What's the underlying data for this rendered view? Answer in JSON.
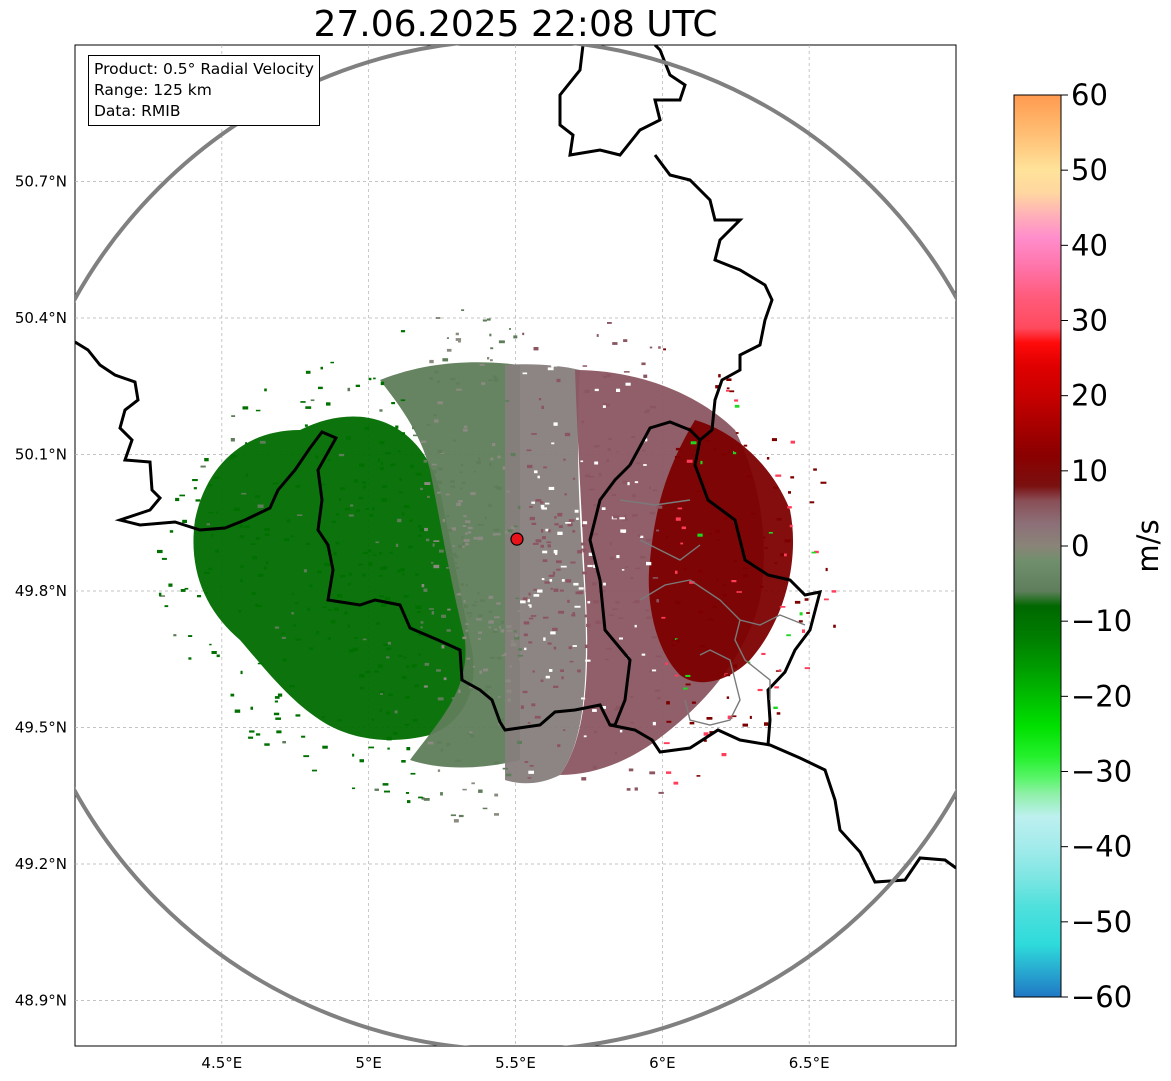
{
  "title": "27.06.2025 22:08 UTC",
  "info": {
    "product": "Product: 0.5° Radial Velocity",
    "range": "Range: 125 km",
    "data": "Data: RMIB"
  },
  "map": {
    "lon_range": [
      4.0,
      7.0
    ],
    "lat_range": [
      48.8,
      51.0
    ],
    "lon_ticks": [
      "4.5°E",
      "5°E",
      "5.5°E",
      "6°E",
      "6.5°E"
    ],
    "lon_tick_values": [
      4.5,
      5.0,
      5.5,
      6.0,
      6.5
    ],
    "lat_ticks": [
      "48.9°N",
      "49.2°N",
      "49.5°N",
      "49.8°N",
      "50.1°N",
      "50.4°N",
      "50.7°N"
    ],
    "lat_tick_values": [
      48.9,
      49.2,
      49.5,
      49.8,
      50.1,
      50.4,
      50.7
    ],
    "grid": true,
    "radar_site": {
      "lon": 5.505,
      "lat": 49.914,
      "color": "#e8121b"
    },
    "range_ring_color": "#808080",
    "border_color": "#000000"
  },
  "colorbar": {
    "unit": "m/s",
    "min": -60,
    "max": 60,
    "tick_labels": [
      "60",
      "50",
      "40",
      "30",
      "20",
      "10",
      "0",
      "−10",
      "−20",
      "−30",
      "−40",
      "−50",
      "−60"
    ],
    "tick_values": [
      60,
      50,
      40,
      30,
      20,
      10,
      0,
      -10,
      -20,
      -30,
      -40,
      -50,
      -60
    ],
    "color_stops": [
      {
        "v": -60,
        "c": "#1f77c4"
      },
      {
        "v": -57,
        "c": "#27a3cf"
      },
      {
        "v": -53,
        "c": "#2edbdb"
      },
      {
        "v": -48,
        "c": "#4fe0dc"
      },
      {
        "v": -44,
        "c": "#7ee6e3"
      },
      {
        "v": -40,
        "c": "#a3ebeb"
      },
      {
        "v": -36,
        "c": "#bdf0ef"
      },
      {
        "v": -33,
        "c": "#8ff0a8"
      },
      {
        "v": -31,
        "c": "#5cf56c"
      },
      {
        "v": -28,
        "c": "#24f02c"
      },
      {
        "v": -24,
        "c": "#00e000"
      },
      {
        "v": -20,
        "c": "#00bd00"
      },
      {
        "v": -16,
        "c": "#009a00"
      },
      {
        "v": -12,
        "c": "#007d00"
      },
      {
        "v": -8,
        "c": "#006800"
      },
      {
        "v": -6,
        "c": "#5f7f5c"
      },
      {
        "v": -2,
        "c": "#708f6c"
      },
      {
        "v": 0,
        "c": "#8a8478"
      },
      {
        "v": 3,
        "c": "#8c6f78"
      },
      {
        "v": 6,
        "c": "#8a4f57"
      },
      {
        "v": 8,
        "c": "#7a1010"
      },
      {
        "v": 12,
        "c": "#8a0000"
      },
      {
        "v": 16,
        "c": "#a80000"
      },
      {
        "v": 20,
        "c": "#c80000"
      },
      {
        "v": 24,
        "c": "#e00000"
      },
      {
        "v": 27,
        "c": "#ff0a0a"
      },
      {
        "v": 29,
        "c": "#ff4a5e"
      },
      {
        "v": 33,
        "c": "#ff5a7a"
      },
      {
        "v": 37,
        "c": "#ff73a8"
      },
      {
        "v": 41,
        "c": "#ff8dcc"
      },
      {
        "v": 44,
        "c": "#ffb0b8"
      },
      {
        "v": 47,
        "c": "#ffd7a0"
      },
      {
        "v": 50,
        "c": "#ffe39a"
      },
      {
        "v": 54,
        "c": "#ffc47a"
      },
      {
        "v": 57,
        "c": "#ffb064"
      },
      {
        "v": 60,
        "c": "#ff9a50"
      }
    ]
  },
  "velocity_regions": [
    {
      "name": "inbound-strong",
      "color": "#006a00"
    },
    {
      "name": "inbound-weak",
      "color": "#5f7d5a"
    },
    {
      "name": "near-zero",
      "color": "#877e7c"
    },
    {
      "name": "outbound-weak",
      "color": "#8b5662"
    },
    {
      "name": "outbound-strong",
      "color": "#7d0000"
    }
  ]
}
